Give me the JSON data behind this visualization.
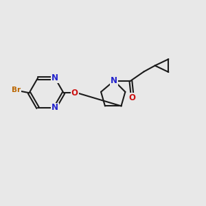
{
  "bg_color": "#e8e8e8",
  "bond_color": "#1a1a1a",
  "N_color": "#2222cc",
  "O_color": "#cc1111",
  "Br_color": "#bb6600",
  "bond_width": 1.5,
  "font_size_atom": 8.5,
  "font_size_br": 7.5,
  "xlim": [
    0,
    10
  ],
  "ylim": [
    0,
    10
  ]
}
